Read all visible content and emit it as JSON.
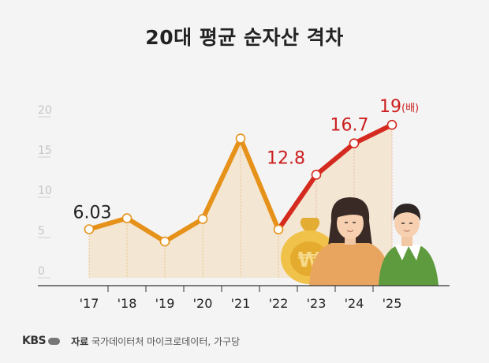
{
  "page": {
    "title": "20대 평균 순자산 격차",
    "logo": "KBS",
    "source_label": "자료",
    "source_text": "국가데이터처 마이크로데이터, 가구당"
  },
  "colors": {
    "line_orange": "#e6921a",
    "line_red": "#d42a1f",
    "label_red": "#cc1f1f",
    "area_fill": "#f3e6d2"
  },
  "chart_data": {
    "type": "line",
    "title": "20대 평균 순자산 격차",
    "xlabel": "",
    "ylabel": "",
    "x": [
      "'17",
      "'18",
      "'19",
      "'20",
      "'21",
      "'22",
      "'23",
      "'24",
      "'25"
    ],
    "series": [
      {
        "values": [
          6.03,
          7.4,
          4.5,
          7.3,
          17.3,
          6.0,
          12.8,
          16.7,
          19
        ]
      }
    ],
    "yticks": [
      0,
      5,
      10,
      15,
      20
    ],
    "ylim": [
      0,
      20
    ],
    "data_labels": [
      {
        "index": 0,
        "text": "6.03"
      },
      {
        "index": 6,
        "text": "12.8"
      },
      {
        "index": 7,
        "text": "16.7"
      },
      {
        "index": 8,
        "text": "19",
        "unit": "(배)"
      }
    ],
    "grid": false
  }
}
